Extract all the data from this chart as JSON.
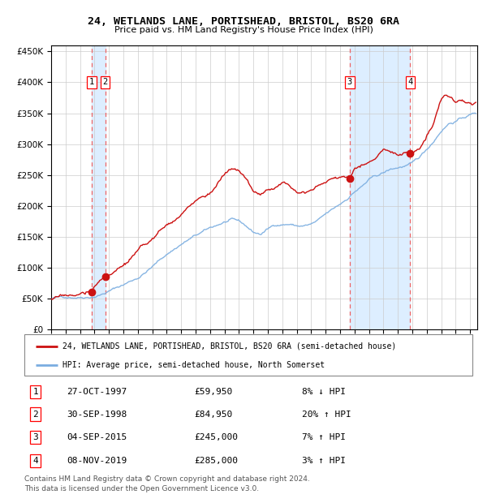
{
  "title1": "24, WETLANDS LANE, PORTISHEAD, BRISTOL, BS20 6RA",
  "title2": "Price paid vs. HM Land Registry's House Price Index (HPI)",
  "legend_line1": "24, WETLANDS LANE, PORTISHEAD, BRISTOL, BS20 6RA (semi-detached house)",
  "legend_line2": "HPI: Average price, semi-detached house, North Somerset",
  "transactions": [
    {
      "num": 1,
      "date": "27-OCT-1997",
      "price": 59950,
      "pct": "8%",
      "dir": "↓",
      "x": 1997.82
    },
    {
      "num": 2,
      "date": "30-SEP-1998",
      "price": 84950,
      "pct": "20%",
      "dir": "↑",
      "x": 1998.75
    },
    {
      "num": 3,
      "date": "04-SEP-2015",
      "price": 245000,
      "pct": "7%",
      "dir": "↑",
      "x": 2015.67
    },
    {
      "num": 4,
      "date": "08-NOV-2019",
      "price": 285000,
      "pct": "3%",
      "dir": "↑",
      "x": 2019.85
    }
  ],
  "hpi_color": "#7aade0",
  "price_color": "#cc1111",
  "shade_color": "#ddeeff",
  "vline_color": "#ee6666",
  "bg_color": "#ffffff",
  "footer": "Contains HM Land Registry data © Crown copyright and database right 2024.\nThis data is licensed under the Open Government Licence v3.0.",
  "ylim": [
    0,
    460000
  ],
  "xlim": [
    1995.0,
    2024.5
  ],
  "yticks": [
    0,
    50000,
    100000,
    150000,
    200000,
    250000,
    300000,
    350000,
    400000,
    450000
  ]
}
